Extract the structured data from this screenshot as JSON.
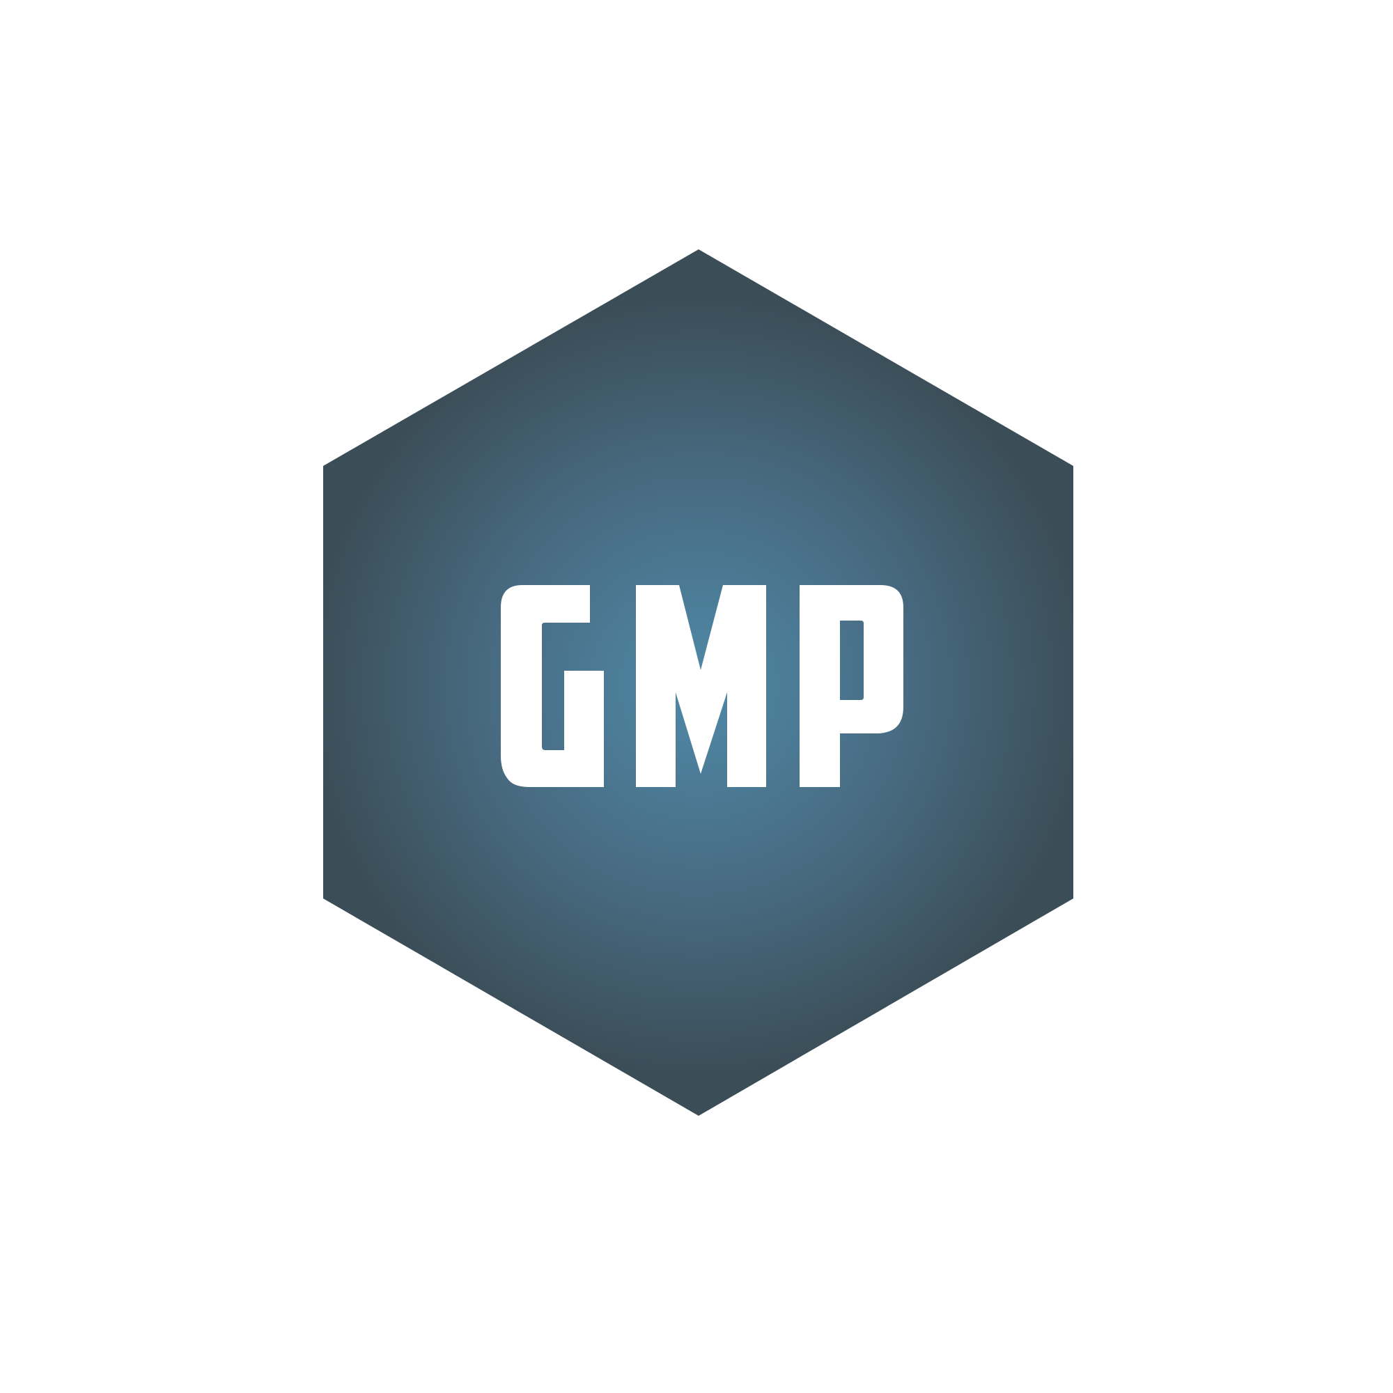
{
  "logo": {
    "text": "GMP",
    "icon": "hexagon-badge",
    "colors": {
      "background": "#ffffff",
      "gradient_center": "#5089a7",
      "gradient_edge": "#3b4d57",
      "lettering": "#ffffff"
    }
  }
}
